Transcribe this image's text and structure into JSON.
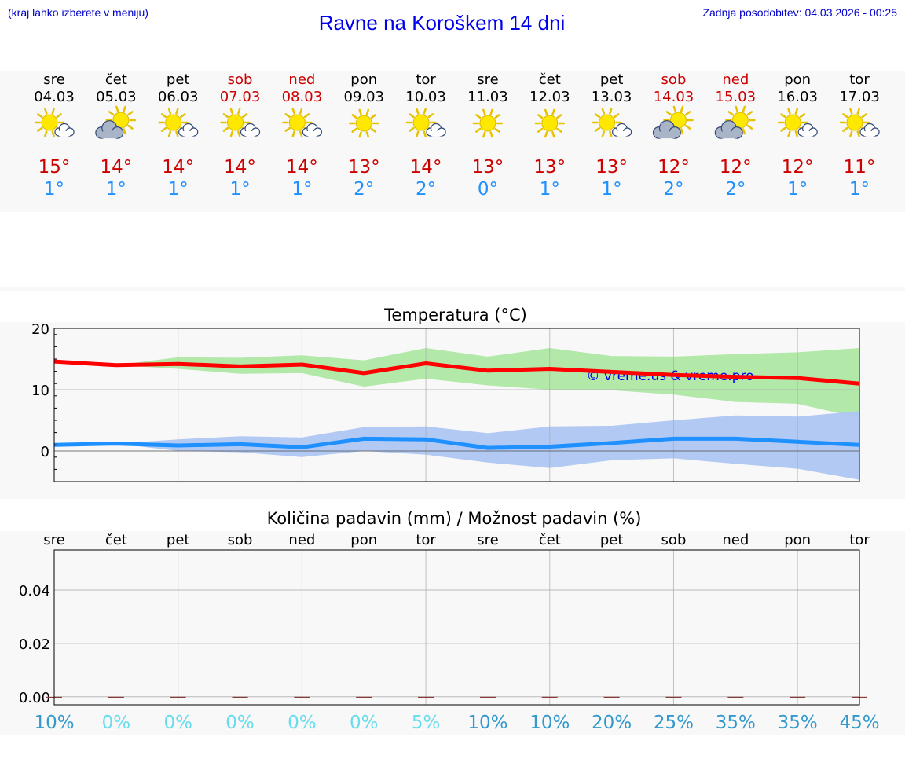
{
  "header": {
    "hint": "(kraj lahko izberete v meniju)",
    "title": "Ravne na Koroškem 14 dni",
    "updated": "Zadnja posodobitev: 04.03.2026 - 00:25"
  },
  "watermark": "© vreme.us & vreme.pro",
  "colors": {
    "weekday": "#000000",
    "weekend": "#cc0000",
    "tmax": "#cc0000",
    "tmin": "#1e90ff",
    "line_max": "#ff0000",
    "line_min": "#1e90ff",
    "band_max": "#aee8a4",
    "band_min": "#aec6f2",
    "pct_dark": "#3399cc",
    "pct_light": "#66ddee"
  },
  "days": [
    {
      "name": "sre",
      "date": "04.03",
      "weekend": false,
      "icon": "sun-partly-cloudy-icon",
      "tmax": "15°",
      "tmin": "1°"
    },
    {
      "name": "čet",
      "date": "05.03",
      "weekend": false,
      "icon": "sun-cloudy-icon",
      "tmax": "14°",
      "tmin": "1°"
    },
    {
      "name": "pet",
      "date": "06.03",
      "weekend": false,
      "icon": "sun-partly-cloudy-icon",
      "tmax": "14°",
      "tmin": "1°"
    },
    {
      "name": "sob",
      "date": "07.03",
      "weekend": true,
      "icon": "sun-partly-cloudy-icon",
      "tmax": "14°",
      "tmin": "1°"
    },
    {
      "name": "ned",
      "date": "08.03",
      "weekend": true,
      "icon": "sun-partly-cloudy-icon",
      "tmax": "14°",
      "tmin": "1°"
    },
    {
      "name": "pon",
      "date": "09.03",
      "weekend": false,
      "icon": "sun-icon",
      "tmax": "13°",
      "tmin": "2°"
    },
    {
      "name": "tor",
      "date": "10.03",
      "weekend": false,
      "icon": "sun-partly-cloudy-icon",
      "tmax": "14°",
      "tmin": "2°"
    },
    {
      "name": "sre",
      "date": "11.03",
      "weekend": false,
      "icon": "sun-icon",
      "tmax": "13°",
      "tmin": "0°"
    },
    {
      "name": "čet",
      "date": "12.03",
      "weekend": false,
      "icon": "sun-icon",
      "tmax": "13°",
      "tmin": "1°"
    },
    {
      "name": "pet",
      "date": "13.03",
      "weekend": false,
      "icon": "sun-partly-cloudy-icon",
      "tmax": "13°",
      "tmin": "1°"
    },
    {
      "name": "sob",
      "date": "14.03",
      "weekend": true,
      "icon": "sun-cloudy-icon",
      "tmax": "12°",
      "tmin": "2°"
    },
    {
      "name": "ned",
      "date": "15.03",
      "weekend": true,
      "icon": "sun-cloudy-icon",
      "tmax": "12°",
      "tmin": "2°"
    },
    {
      "name": "pon",
      "date": "16.03",
      "weekend": false,
      "icon": "sun-partly-cloudy-icon",
      "tmax": "12°",
      "tmin": "1°"
    },
    {
      "name": "tor",
      "date": "17.03",
      "weekend": false,
      "icon": "sun-partly-cloudy-icon",
      "tmax": "11°",
      "tmin": "1°"
    }
  ],
  "chart_data": [
    {
      "type": "line",
      "title": "Temperatura (°C)",
      "xlabel": "",
      "ylabel": "",
      "x": [
        0,
        1,
        2,
        3,
        4,
        5,
        6,
        7,
        8,
        9,
        10,
        11,
        12,
        13
      ],
      "ylim": [
        -5,
        20
      ],
      "yticks": [
        0,
        10,
        20
      ],
      "grid": true,
      "series": [
        {
          "name": "max",
          "values": [
            14.6,
            14.0,
            14.2,
            13.8,
            14.1,
            12.7,
            14.3,
            13.1,
            13.4,
            12.9,
            12.4,
            12.1,
            11.9,
            11.0
          ]
        },
        {
          "name": "min",
          "values": [
            1.0,
            1.2,
            0.9,
            1.1,
            0.6,
            2.0,
            1.9,
            0.5,
            0.7,
            1.3,
            2.0,
            2.0,
            1.5,
            1.0
          ]
        }
      ],
      "bands": [
        {
          "name": "max-range",
          "lower": [
            14.6,
            14.0,
            13.4,
            12.6,
            12.7,
            10.5,
            11.8,
            10.7,
            10.0,
            9.9,
            9.2,
            8.0,
            7.7,
            5.4
          ],
          "upper": [
            14.6,
            14.0,
            15.3,
            15.2,
            15.6,
            14.8,
            16.8,
            15.4,
            16.8,
            15.5,
            15.4,
            15.8,
            16.1,
            16.8
          ]
        },
        {
          "name": "min-range",
          "lower": [
            1.0,
            1.2,
            0.0,
            -0.2,
            -1.0,
            0.0,
            -0.6,
            -1.9,
            -2.8,
            -1.5,
            -1.2,
            -2.1,
            -2.9,
            -4.7
          ],
          "upper": [
            1.0,
            1.2,
            1.9,
            2.4,
            2.2,
            3.9,
            4.0,
            2.9,
            4.0,
            4.1,
            5.0,
            5.8,
            5.6,
            6.5
          ]
        }
      ]
    },
    {
      "type": "bar",
      "title": "Količina padavin (mm) / Možnost padavin (%)",
      "xlabel": "",
      "ylabel": "",
      "categories": [
        "sre",
        "čet",
        "pet",
        "sob",
        "ned",
        "pon",
        "tor",
        "sre",
        "čet",
        "pet",
        "sob",
        "ned",
        "pon",
        "tor"
      ],
      "values": [
        0,
        0,
        0,
        0,
        0,
        0,
        0,
        0,
        0,
        0,
        0,
        0,
        0,
        0
      ],
      "probability": [
        "10%",
        "0%",
        "0%",
        "0%",
        "0%",
        "0%",
        "5%",
        "10%",
        "10%",
        "20%",
        "25%",
        "35%",
        "35%",
        "45%"
      ],
      "probability_values": [
        10,
        0,
        0,
        0,
        0,
        0,
        5,
        10,
        10,
        20,
        25,
        35,
        35,
        45
      ],
      "ylim": [
        -0.003,
        0.055
      ],
      "yticks": [
        "0.00",
        "0.02",
        "0.04"
      ],
      "ytick_values": [
        0,
        0.02,
        0.04
      ],
      "grid": true
    }
  ]
}
